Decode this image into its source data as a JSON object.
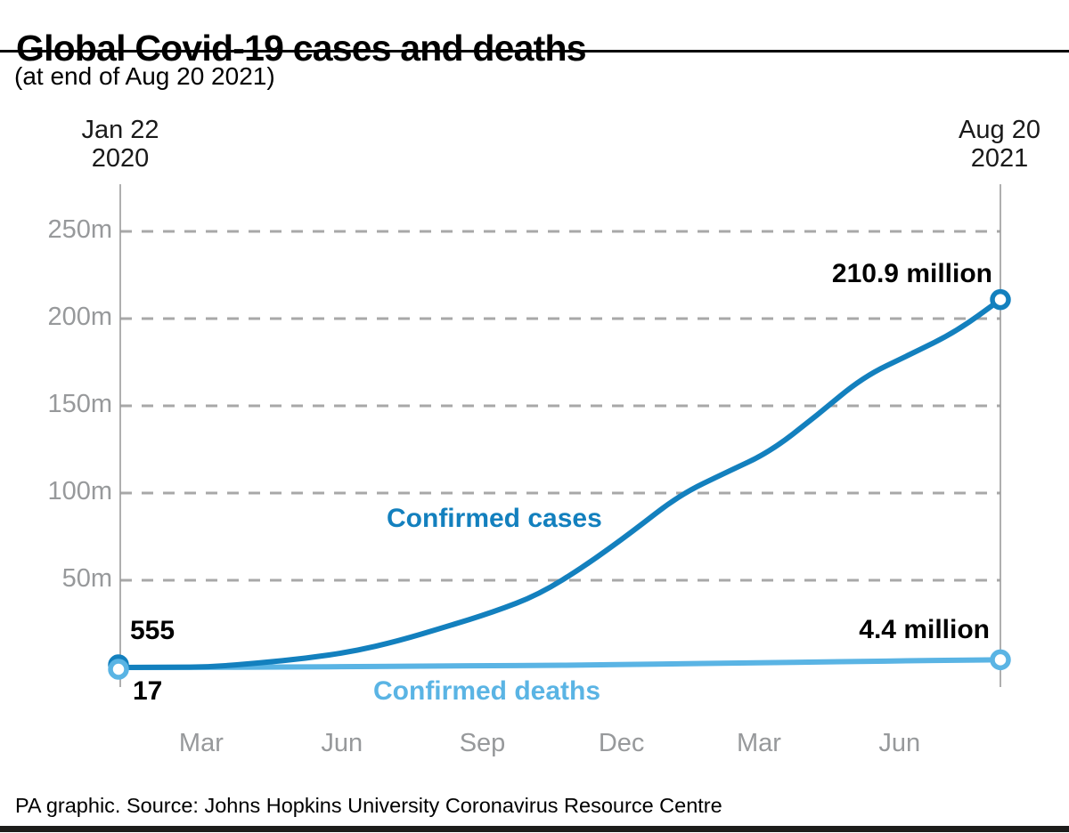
{
  "header": {
    "title": "Global Covid-19 cases and deaths",
    "subtitle": "(at end of Aug 20 2021)"
  },
  "footer": {
    "credit": "PA graphic. Source: Johns Hopkins University Coronavirus Resource Centre"
  },
  "colors": {
    "cases": "#1380be",
    "deaths": "#5ab4e4",
    "grid": "#a8a8a8",
    "axis": "#9b9b9b",
    "muted_text": "#97999b",
    "bottom_bar": "#1d1d1b"
  },
  "chart_data": {
    "type": "line",
    "title": "Global Covid-19 cases and deaths",
    "subtitle": "(at end of Aug 20 2021)",
    "x_axis": {
      "start_label": [
        "Jan 22",
        "2020"
      ],
      "end_label": [
        "Aug 20",
        "2021"
      ],
      "total_days": 576,
      "month_ticks": [
        {
          "label": "Mar",
          "day": 53
        },
        {
          "label": "Jun",
          "day": 145
        },
        {
          "label": "Sep",
          "day": 237
        },
        {
          "label": "Dec",
          "day": 328
        },
        {
          "label": "Mar",
          "day": 418
        },
        {
          "label": "Jun",
          "day": 510
        }
      ]
    },
    "y_axis": {
      "unit": "millions",
      "range": [
        0,
        260
      ],
      "grid": "dashed",
      "ticks": [
        {
          "label": "250m",
          "value": 250
        },
        {
          "label": "200m",
          "value": 200
        },
        {
          "label": "150m",
          "value": 150
        },
        {
          "label": "100m",
          "value": 100
        },
        {
          "label": "50m",
          "value": 50
        }
      ]
    },
    "legend_position": "inline-labels",
    "series": [
      {
        "name": "Confirmed cases",
        "color_key": "cases",
        "start_label": "555",
        "start_value": 555,
        "end_label": "210.9 million",
        "end_value_millions": 210.9,
        "points": [
          [
            0,
            0.000555
          ],
          [
            31,
            0.08
          ],
          [
            60,
            0.34
          ],
          [
            91,
            2.6
          ],
          [
            121,
            5.2
          ],
          [
            152,
            9.1
          ],
          [
            182,
            15.2
          ],
          [
            213,
            23.3
          ],
          [
            244,
            31.7
          ],
          [
            274,
            41.8
          ],
          [
            305,
            58.7
          ],
          [
            335,
            77.8
          ],
          [
            366,
            98.9
          ],
          [
            397,
            112
          ],
          [
            425,
            123.5
          ],
          [
            456,
            144.5
          ],
          [
            486,
            166.5
          ],
          [
            517,
            179.5
          ],
          [
            547,
            192.5
          ],
          [
            576,
            210.9
          ]
        ]
      },
      {
        "name": "Confirmed deaths",
        "color_key": "deaths",
        "start_label": "17",
        "start_value": 17,
        "end_label": "4.4 million",
        "end_value_millions": 4.4,
        "points": [
          [
            0,
            1.7e-05
          ],
          [
            60,
            0.035
          ],
          [
            91,
            0.19
          ],
          [
            121,
            0.33
          ],
          [
            152,
            0.47
          ],
          [
            182,
            0.66
          ],
          [
            213,
            0.85
          ],
          [
            244,
            1.0
          ],
          [
            274,
            1.16
          ],
          [
            305,
            1.39
          ],
          [
            335,
            1.74
          ],
          [
            366,
            2.12
          ],
          [
            397,
            2.47
          ],
          [
            425,
            2.73
          ],
          [
            456,
            3.1
          ],
          [
            486,
            3.47
          ],
          [
            517,
            3.86
          ],
          [
            547,
            4.16
          ],
          [
            576,
            4.4
          ]
        ]
      }
    ]
  }
}
